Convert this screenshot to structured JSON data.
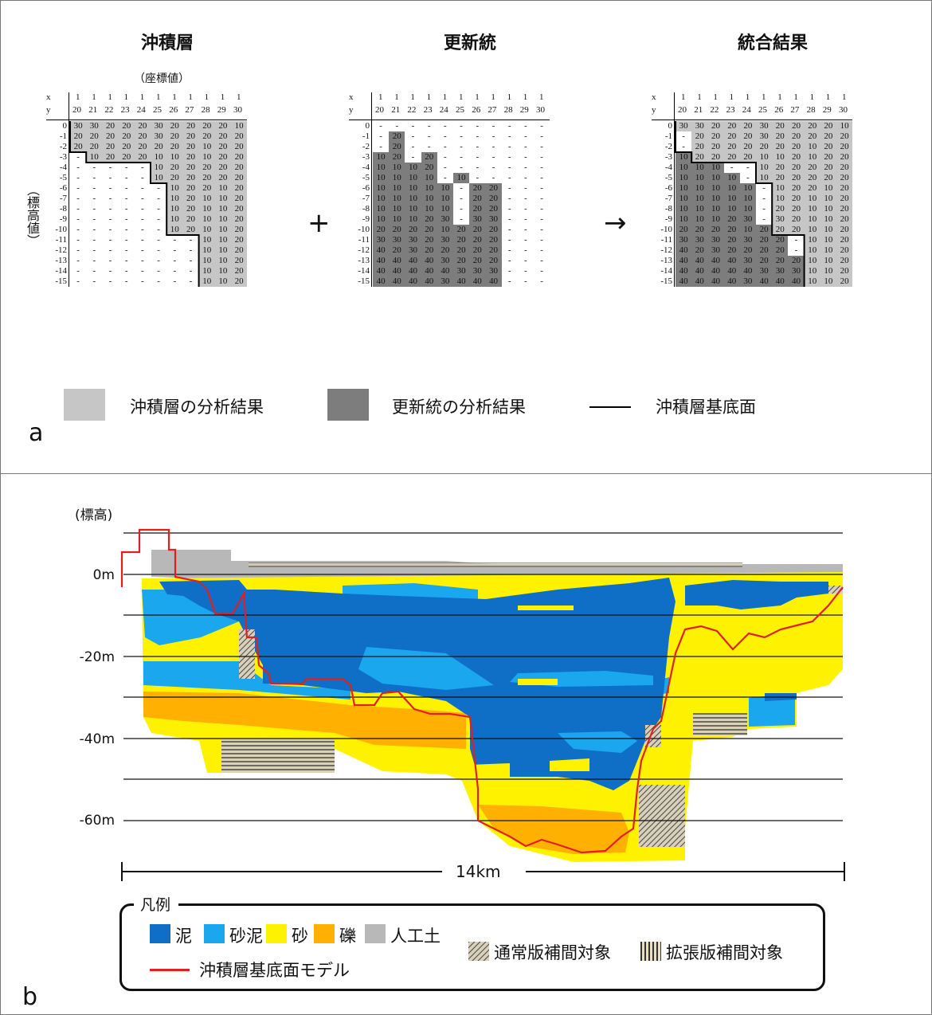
{
  "panel_a": {
    "letter": "a",
    "titles": [
      "沖積層",
      "更新統",
      "統合結果"
    ],
    "coord_note": "（座標値）",
    "y_axis_label": "（標高値）",
    "x_label": "x",
    "y_label": "y",
    "x_ticks_top": [
      "1",
      "1",
      "1",
      "1",
      "1",
      "1",
      "1",
      "1",
      "1",
      "1",
      "1"
    ],
    "x_ticks_bottom": [
      "20",
      "21",
      "22",
      "23",
      "24",
      "25",
      "26",
      "27",
      "28",
      "29",
      "30"
    ],
    "row_labels": [
      "0",
      "-1",
      "-2",
      "-3",
      "-4",
      "-5",
      "-6",
      "-7",
      "-8",
      "-9",
      "-10",
      "-11",
      "-12",
      "-13",
      "-14",
      "-15"
    ],
    "operators": [
      "+",
      "→"
    ],
    "grids": [
      {
        "name": "沖積層",
        "rows": [
          [
            "30",
            "30",
            "20",
            "20",
            "20",
            "30",
            "20",
            "20",
            "20",
            "20",
            "10"
          ],
          [
            "20",
            "20",
            "20",
            "20",
            "20",
            "30",
            "20",
            "20",
            "20",
            "20",
            "20"
          ],
          [
            "20",
            "20",
            "20",
            "20",
            "20",
            "20",
            "20",
            "20",
            "10",
            "20",
            "20"
          ],
          [
            "-",
            "10",
            "20",
            "20",
            "20",
            "10",
            "10",
            "20",
            "10",
            "20",
            "20"
          ],
          [
            "-",
            "-",
            "-",
            "-",
            "-",
            "10",
            "20",
            "20",
            "20",
            "20",
            "20"
          ],
          [
            "-",
            "-",
            "-",
            "-",
            "-",
            "10",
            "20",
            "20",
            "20",
            "20",
            "20"
          ],
          [
            "-",
            "-",
            "-",
            "-",
            "-",
            "-",
            "10",
            "20",
            "20",
            "10",
            "20"
          ],
          [
            "-",
            "-",
            "-",
            "-",
            "-",
            "-",
            "10",
            "20",
            "10",
            "10",
            "20"
          ],
          [
            "-",
            "-",
            "-",
            "-",
            "-",
            "-",
            "10",
            "20",
            "10",
            "10",
            "20"
          ],
          [
            "-",
            "-",
            "-",
            "-",
            "-",
            "-",
            "10",
            "20",
            "10",
            "10",
            "20"
          ],
          [
            "-",
            "-",
            "-",
            "-",
            "-",
            "-",
            "10",
            "20",
            "10",
            "10",
            "20"
          ],
          [
            "-",
            "-",
            "-",
            "-",
            "-",
            "-",
            "-",
            "-",
            "10",
            "10",
            "20"
          ],
          [
            "-",
            "-",
            "-",
            "-",
            "-",
            "-",
            "-",
            "-",
            "10",
            "10",
            "20"
          ],
          [
            "-",
            "-",
            "-",
            "-",
            "-",
            "-",
            "-",
            "-",
            "10",
            "10",
            "20"
          ],
          [
            "-",
            "-",
            "-",
            "-",
            "-",
            "-",
            "-",
            "-",
            "10",
            "10",
            "20"
          ],
          [
            "-",
            "-",
            "-",
            "-",
            "-",
            "-",
            "-",
            "-",
            "10",
            "10",
            "20"
          ]
        ]
      },
      {
        "name": "更新統",
        "rows": [
          [
            "-",
            "-",
            "-",
            "-",
            "-",
            "-",
            "-",
            "-",
            "-",
            "-",
            "-"
          ],
          [
            "-",
            "20",
            "-",
            "-",
            "-",
            "-",
            "-",
            "-",
            "-",
            "-",
            "-"
          ],
          [
            "-",
            "20",
            "-",
            "-",
            "-",
            "-",
            "-",
            "-",
            "-",
            "-",
            "-"
          ],
          [
            "10",
            "20",
            "-",
            "20",
            "-",
            "-",
            "-",
            "-",
            "-",
            "-",
            "-"
          ],
          [
            "10",
            "10",
            "10",
            "20",
            "-",
            "-",
            "-",
            "-",
            "-",
            "-",
            "-"
          ],
          [
            "10",
            "10",
            "10",
            "10",
            "-",
            "10",
            "-",
            "-",
            "-",
            "-",
            "-"
          ],
          [
            "10",
            "10",
            "10",
            "10",
            "10",
            "-",
            "20",
            "20",
            "-",
            "-",
            "-"
          ],
          [
            "10",
            "10",
            "10",
            "10",
            "10",
            "-",
            "20",
            "20",
            "-",
            "-",
            "-"
          ],
          [
            "10",
            "10",
            "10",
            "10",
            "10",
            "-",
            "20",
            "20",
            "-",
            "-",
            "-"
          ],
          [
            "10",
            "10",
            "10",
            "20",
            "30",
            "-",
            "30",
            "30",
            "-",
            "-",
            "-"
          ],
          [
            "20",
            "20",
            "20",
            "20",
            "10",
            "20",
            "20",
            "20",
            "-",
            "-",
            "-"
          ],
          [
            "30",
            "30",
            "30",
            "20",
            "30",
            "20",
            "20",
            "20",
            "-",
            "-",
            "-"
          ],
          [
            "40",
            "20",
            "30",
            "20",
            "20",
            "20",
            "20",
            "20",
            "-",
            "-",
            "-"
          ],
          [
            "40",
            "40",
            "40",
            "40",
            "30",
            "20",
            "20",
            "20",
            "-",
            "-",
            "-"
          ],
          [
            "40",
            "40",
            "40",
            "40",
            "40",
            "30",
            "30",
            "30",
            "-",
            "-",
            "-"
          ],
          [
            "40",
            "40",
            "40",
            "40",
            "30",
            "40",
            "40",
            "40",
            "-",
            "-",
            "-"
          ]
        ]
      },
      {
        "name": "統合結果",
        "rows": [
          [
            "30",
            "30",
            "20",
            "20",
            "20",
            "30",
            "20",
            "20",
            "20",
            "20",
            "10"
          ],
          [
            "-",
            "20",
            "20",
            "20",
            "20",
            "30",
            "20",
            "20",
            "20",
            "20",
            "20"
          ],
          [
            "-",
            "20",
            "20",
            "20",
            "20",
            "20",
            "20",
            "20",
            "10",
            "20",
            "20"
          ],
          [
            "10",
            "20",
            "20",
            "20",
            "20",
            "10",
            "10",
            "20",
            "10",
            "20",
            "20"
          ],
          [
            "10",
            "10",
            "10",
            "-",
            "-",
            "10",
            "20",
            "20",
            "20",
            "20",
            "20"
          ],
          [
            "10",
            "10",
            "10",
            "10",
            "-",
            "10",
            "20",
            "20",
            "20",
            "20",
            "20"
          ],
          [
            "10",
            "10",
            "10",
            "10",
            "10",
            "-",
            "10",
            "20",
            "20",
            "10",
            "20"
          ],
          [
            "10",
            "10",
            "10",
            "10",
            "10",
            "-",
            "10",
            "20",
            "10",
            "10",
            "20"
          ],
          [
            "10",
            "10",
            "10",
            "10",
            "10",
            "-",
            "20",
            "20",
            "10",
            "10",
            "20"
          ],
          [
            "10",
            "10",
            "10",
            "20",
            "30",
            "-",
            "30",
            "20",
            "10",
            "10",
            "20"
          ],
          [
            "20",
            "20",
            "20",
            "20",
            "10",
            "20",
            "20",
            "20",
            "10",
            "10",
            "20"
          ],
          [
            "30",
            "30",
            "30",
            "20",
            "30",
            "20",
            "20",
            "-",
            "10",
            "10",
            "20"
          ],
          [
            "40",
            "20",
            "30",
            "20",
            "20",
            "20",
            "20",
            "-",
            "10",
            "10",
            "20"
          ],
          [
            "40",
            "40",
            "40",
            "40",
            "30",
            "20",
            "20",
            "20",
            "10",
            "10",
            "20"
          ],
          [
            "40",
            "40",
            "40",
            "40",
            "40",
            "30",
            "30",
            "30",
            "10",
            "10",
            "20"
          ],
          [
            "40",
            "40",
            "40",
            "40",
            "30",
            "40",
            "40",
            "40",
            "10",
            "10",
            "20"
          ]
        ]
      }
    ],
    "legend": [
      {
        "label": "沖積層の分析結果",
        "color": "#c6c6c6"
      },
      {
        "label": "更新統の分析結果",
        "color": "#7d7d7d"
      },
      {
        "label": "沖積層基底面",
        "color": "#000000"
      }
    ]
  },
  "panel_b": {
    "letter": "b",
    "elevation_title": "(標高)",
    "y_ticks": [
      "0m",
      "-20m",
      "-40m",
      "-60m"
    ],
    "scale_label": "14km",
    "legend_title": "凡例",
    "legend_items": [
      {
        "label": "泥",
        "color": "#0f6fc6"
      },
      {
        "label": "砂泥",
        "color": "#1aa7ee"
      },
      {
        "label": "砂",
        "color": "#fff200"
      },
      {
        "label": "礫",
        "color": "#ffb000"
      },
      {
        "label": "人工土",
        "color": "#b8b8b8"
      }
    ],
    "legend_line": {
      "label": "沖積層基底面モデル",
      "color": "#e02020"
    },
    "legend_hatch": [
      {
        "label": "通常版補間対象"
      },
      {
        "label": "拡張版補間対象"
      }
    ]
  }
}
